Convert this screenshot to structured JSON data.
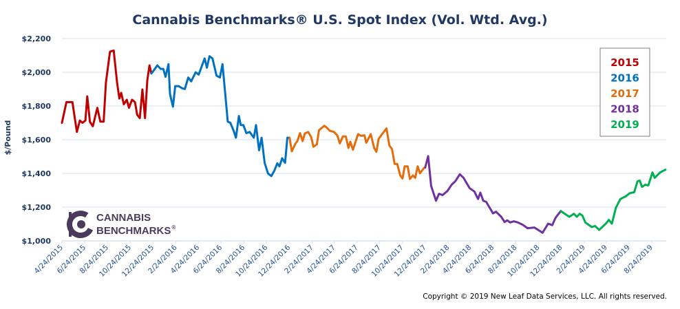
{
  "chart_data": {
    "type": "line",
    "title": "Cannabis Benchmarks® U.S. Spot Index (Vol. Wtd. Avg.)",
    "xlabel": "",
    "ylabel": "$/Pound",
    "ylim": [
      1000,
      2200
    ],
    "xlim": [
      "2015-04-24",
      "2019-10-02"
    ],
    "grid": true,
    "legend_position": "top-right",
    "y_ticks": [
      "$1,000",
      "$1,200",
      "$1,400",
      "$1,600",
      "$1,800",
      "$2,000",
      "$2,200"
    ],
    "x_ticks": [
      "4/24/2015",
      "6/24/2015",
      "8/24/2015",
      "10/24/2015",
      "12/24/2015",
      "2/24/2016",
      "4/24/2016",
      "6/24/2016",
      "8/24/2016",
      "10/24/2016",
      "12/24/2016",
      "2/24/2017",
      "4/24/2017",
      "6/24/2017",
      "8/24/2017",
      "10/24/2017",
      "12/24/2017",
      "2/24/2018",
      "4/24/2018",
      "6/24/2018",
      "8/24/2018",
      "10/24/2018",
      "12/24/2018",
      "2/24/2019",
      "4/24/2019",
      "6/24/2019",
      "8/24/2019"
    ],
    "series": [
      {
        "name": "2015",
        "color": "#c00000",
        "points": [
          [
            "2015-04-24",
            1700
          ],
          [
            "2015-05-06",
            1823
          ],
          [
            "2015-05-22",
            1823
          ],
          [
            "2015-06-03",
            1646
          ],
          [
            "2015-06-11",
            1714
          ],
          [
            "2015-06-18",
            1700
          ],
          [
            "2015-06-26",
            1714
          ],
          [
            "2015-07-01",
            1857
          ],
          [
            "2015-07-08",
            1707
          ],
          [
            "2015-07-16",
            1680
          ],
          [
            "2015-07-28",
            1789
          ],
          [
            "2015-08-05",
            1707
          ],
          [
            "2015-08-14",
            1707
          ],
          [
            "2015-08-20",
            1939
          ],
          [
            "2015-08-31",
            2122
          ],
          [
            "2015-09-10",
            2129
          ],
          [
            "2015-09-19",
            1939
          ],
          [
            "2015-09-25",
            1844
          ],
          [
            "2015-09-30",
            1878
          ],
          [
            "2015-10-07",
            1810
          ],
          [
            "2015-10-15",
            1837
          ],
          [
            "2015-10-21",
            1789
          ],
          [
            "2015-10-29",
            1837
          ],
          [
            "2015-11-06",
            1823
          ],
          [
            "2015-11-12",
            1748
          ],
          [
            "2015-11-19",
            1728
          ],
          [
            "2015-11-26",
            1898
          ],
          [
            "2015-12-03",
            1728
          ],
          [
            "2015-12-09",
            1952
          ],
          [
            "2015-12-15",
            2041
          ],
          [
            "2015-12-20",
            1993
          ]
        ]
      },
      {
        "name": "2016",
        "color": "#0070c0",
        "points": [
          [
            "2015-12-20",
            1993
          ],
          [
            "2015-12-23",
            2000
          ],
          [
            "2016-01-05",
            2041
          ],
          [
            "2016-01-14",
            2020
          ],
          [
            "2016-01-21",
            2020
          ],
          [
            "2016-01-27",
            1973
          ],
          [
            "2016-02-04",
            2048
          ],
          [
            "2016-02-08",
            1871
          ],
          [
            "2016-02-16",
            1796
          ],
          [
            "2016-02-22",
            1918
          ],
          [
            "2016-03-02",
            1918
          ],
          [
            "2016-03-12",
            1905
          ],
          [
            "2016-03-19",
            1901
          ],
          [
            "2016-03-28",
            1969
          ],
          [
            "2016-04-05",
            1946
          ],
          [
            "2016-04-17",
            2000
          ],
          [
            "2016-04-25",
            1986
          ],
          [
            "2016-05-03",
            2034
          ],
          [
            "2016-05-11",
            2082
          ],
          [
            "2016-05-17",
            2027
          ],
          [
            "2016-05-24",
            2095
          ],
          [
            "2016-06-01",
            2082
          ],
          [
            "2016-06-12",
            1980
          ],
          [
            "2016-06-21",
            1969
          ],
          [
            "2016-06-28",
            2048
          ],
          [
            "2016-07-06",
            1857
          ],
          [
            "2016-07-12",
            1707
          ],
          [
            "2016-07-19",
            1700
          ],
          [
            "2016-07-28",
            1653
          ],
          [
            "2016-08-03",
            1612
          ],
          [
            "2016-08-11",
            1741
          ],
          [
            "2016-08-16",
            1687
          ],
          [
            "2016-08-23",
            1687
          ],
          [
            "2016-08-31",
            1639
          ],
          [
            "2016-09-09",
            1646
          ],
          [
            "2016-09-20",
            1612
          ],
          [
            "2016-09-26",
            1687
          ],
          [
            "2016-10-04",
            1537
          ],
          [
            "2016-10-11",
            1612
          ],
          [
            "2016-10-19",
            1463
          ],
          [
            "2016-10-28",
            1401
          ],
          [
            "2016-11-06",
            1384
          ],
          [
            "2016-11-14",
            1415
          ],
          [
            "2016-11-22",
            1460
          ],
          [
            "2016-11-28",
            1442
          ],
          [
            "2016-12-05",
            1490
          ],
          [
            "2016-12-13",
            1463
          ],
          [
            "2016-12-19",
            1612
          ],
          [
            "2016-12-25",
            1612
          ]
        ]
      },
      {
        "name": "2017",
        "color": "#e46c0a",
        "points": [
          [
            "2016-12-25",
            1612
          ],
          [
            "2016-12-31",
            1531
          ],
          [
            "2017-01-10",
            1578
          ],
          [
            "2017-01-15",
            1592
          ],
          [
            "2017-01-22",
            1639
          ],
          [
            "2017-01-29",
            1592
          ],
          [
            "2017-02-04",
            1637
          ],
          [
            "2017-02-13",
            1646
          ],
          [
            "2017-02-21",
            1615
          ],
          [
            "2017-02-27",
            1558
          ],
          [
            "2017-03-08",
            1572
          ],
          [
            "2017-03-14",
            1656
          ],
          [
            "2017-03-28",
            1683
          ],
          [
            "2017-04-03",
            1673
          ],
          [
            "2017-04-12",
            1653
          ],
          [
            "2017-04-23",
            1646
          ],
          [
            "2017-05-02",
            1626
          ],
          [
            "2017-05-09",
            1578
          ],
          [
            "2017-05-17",
            1619
          ],
          [
            "2017-05-25",
            1619
          ],
          [
            "2017-06-01",
            1551
          ],
          [
            "2017-06-06",
            1588
          ],
          [
            "2017-06-13",
            1541
          ],
          [
            "2017-06-27",
            1633
          ],
          [
            "2017-07-05",
            1623
          ],
          [
            "2017-07-14",
            1626
          ],
          [
            "2017-07-19",
            1582
          ],
          [
            "2017-07-31",
            1633
          ],
          [
            "2017-08-09",
            1551
          ],
          [
            "2017-08-15",
            1528
          ],
          [
            "2017-08-21",
            1605
          ],
          [
            "2017-08-28",
            1626
          ],
          [
            "2017-09-11",
            1667
          ],
          [
            "2017-09-19",
            1565
          ],
          [
            "2017-09-26",
            1544
          ],
          [
            "2017-10-03",
            1456
          ],
          [
            "2017-10-10",
            1456
          ],
          [
            "2017-10-18",
            1388
          ],
          [
            "2017-10-24",
            1370
          ],
          [
            "2017-10-30",
            1442
          ],
          [
            "2017-11-07",
            1442
          ],
          [
            "2017-11-13",
            1367
          ],
          [
            "2017-11-21",
            1388
          ],
          [
            "2017-11-27",
            1374
          ],
          [
            "2017-12-04",
            1442
          ],
          [
            "2017-12-10",
            1401
          ],
          [
            "2017-12-21",
            1433
          ],
          [
            "2017-12-24",
            1435
          ]
        ]
      },
      {
        "name": "2018",
        "color": "#7030a0",
        "points": [
          [
            "2017-12-24",
            1435
          ],
          [
            "2018-01-01",
            1503
          ],
          [
            "2018-01-09",
            1326
          ],
          [
            "2018-01-22",
            1238
          ],
          [
            "2018-01-30",
            1279
          ],
          [
            "2018-02-09",
            1272
          ],
          [
            "2018-02-22",
            1297
          ],
          [
            "2018-03-05",
            1333
          ],
          [
            "2018-03-15",
            1354
          ],
          [
            "2018-03-27",
            1395
          ],
          [
            "2018-04-06",
            1374
          ],
          [
            "2018-04-22",
            1313
          ],
          [
            "2018-05-05",
            1293
          ],
          [
            "2018-05-15",
            1248
          ],
          [
            "2018-05-21",
            1286
          ],
          [
            "2018-05-29",
            1238
          ],
          [
            "2018-06-06",
            1231
          ],
          [
            "2018-06-24",
            1163
          ],
          [
            "2018-07-02",
            1173
          ],
          [
            "2018-07-16",
            1143
          ],
          [
            "2018-07-25",
            1112
          ],
          [
            "2018-08-01",
            1122
          ],
          [
            "2018-08-09",
            1109
          ],
          [
            "2018-08-19",
            1116
          ],
          [
            "2018-08-30",
            1109
          ],
          [
            "2018-09-12",
            1095
          ],
          [
            "2018-09-25",
            1075
          ],
          [
            "2018-10-13",
            1079
          ],
          [
            "2018-11-04",
            1048
          ],
          [
            "2018-11-19",
            1102
          ],
          [
            "2018-11-30",
            1093
          ],
          [
            "2018-12-09",
            1137
          ],
          [
            "2018-12-23",
            1177
          ]
        ]
      },
      {
        "name": "2019",
        "color": "#00b050",
        "points": [
          [
            "2018-12-23",
            1177
          ],
          [
            "2019-01-01",
            1163
          ],
          [
            "2019-01-15",
            1143
          ],
          [
            "2019-01-27",
            1161
          ],
          [
            "2019-02-04",
            1143
          ],
          [
            "2019-02-12",
            1161
          ],
          [
            "2019-02-19",
            1150
          ],
          [
            "2019-02-27",
            1109
          ],
          [
            "2019-03-16",
            1082
          ],
          [
            "2019-03-25",
            1088
          ],
          [
            "2019-04-05",
            1065
          ],
          [
            "2019-04-16",
            1088
          ],
          [
            "2019-04-23",
            1102
          ],
          [
            "2019-05-01",
            1125
          ],
          [
            "2019-05-09",
            1102
          ],
          [
            "2019-05-20",
            1197
          ],
          [
            "2019-06-01",
            1248
          ],
          [
            "2019-06-16",
            1265
          ],
          [
            "2019-06-26",
            1283
          ],
          [
            "2019-07-08",
            1288
          ],
          [
            "2019-07-17",
            1354
          ],
          [
            "2019-07-23",
            1357
          ],
          [
            "2019-07-29",
            1320
          ],
          [
            "2019-08-07",
            1333
          ],
          [
            "2019-08-15",
            1329
          ],
          [
            "2019-08-26",
            1406
          ],
          [
            "2019-09-01",
            1374
          ],
          [
            "2019-09-16",
            1406
          ],
          [
            "2019-09-30",
            1422
          ]
        ]
      }
    ]
  },
  "logo": {
    "line1": "CANNABIS",
    "line2": "BENCHMARKS",
    "mark": "®",
    "color": "#4b3a5c"
  },
  "copyright": "Copyright © 2019 New Leaf Data Services, LLC.  All rights reserved."
}
